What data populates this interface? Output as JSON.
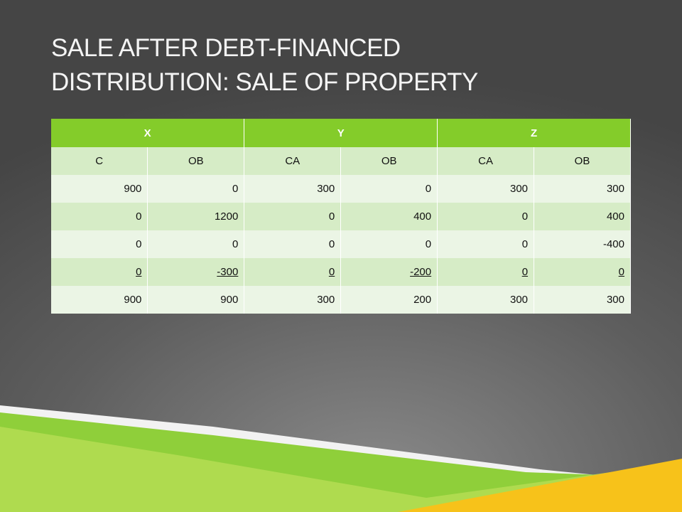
{
  "header": {
    "title_lines": [
      "SALE AFTER DEBT-FINANCED",
      "DISTRIBUTION: SALE OF PROPERTY"
    ]
  },
  "table": {
    "groups": [
      "X",
      "Y",
      "Z"
    ],
    "columns": [
      "C",
      "OB",
      "CA",
      "OB",
      "CA",
      "OB"
    ],
    "rows": [
      [
        900,
        0,
        300,
        0,
        300,
        300
      ],
      [
        0,
        1200,
        0,
        400,
        0,
        400
      ],
      [
        0,
        0,
        0,
        0,
        0,
        -400
      ],
      [
        0,
        -300,
        0,
        -200,
        0,
        0
      ],
      [
        900,
        900,
        300,
        200,
        300,
        300
      ]
    ]
  }
}
